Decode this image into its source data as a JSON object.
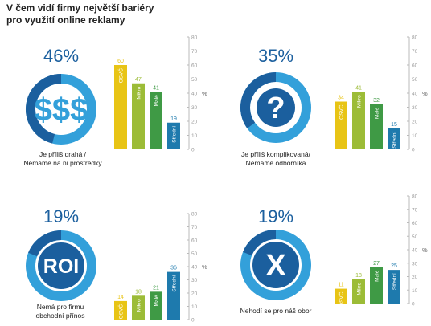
{
  "title_line1": "V čem vidí firmy největší bariéry",
  "title_line2": "pro využití online reklamy",
  "colors": {
    "ring_dark": "#1b5f9e",
    "ring_light": "#33a0da",
    "osvc": "#e8c415",
    "mikro": "#9cbc37",
    "male": "#3f9a45",
    "stredni": "#1e7aad",
    "pct_text": "#1b5f9e"
  },
  "chart_data": [
    {
      "type": "bar",
      "headline": "46%",
      "icon": "dollar-icon",
      "icon_text": "$$$",
      "caption": [
        "Je příliš drahá /",
        "Nemáme na ni prostředky"
      ],
      "categories": [
        "OSVČ",
        "Mikro",
        "Malé",
        "Střední"
      ],
      "values": [
        60,
        47,
        41,
        19
      ],
      "ylabel": "%",
      "ylim": [
        0,
        80
      ],
      "yticks": [
        0,
        10,
        20,
        30,
        40,
        50,
        60,
        70,
        80
      ]
    },
    {
      "type": "bar",
      "headline": "35%",
      "icon": "question-icon",
      "icon_text": "?",
      "caption": [
        "Je příliš komplikovaná/",
        "Nemáme odborníka"
      ],
      "categories": [
        "OSVČ",
        "Mikro",
        "Malé",
        "Střední"
      ],
      "values": [
        34,
        41,
        32,
        15
      ],
      "ylabel": "%",
      "ylim": [
        0,
        80
      ],
      "yticks": [
        0,
        10,
        20,
        30,
        40,
        50,
        60,
        70,
        80
      ]
    },
    {
      "type": "bar",
      "headline": "19%",
      "icon": "roi-icon",
      "icon_text": "ROI",
      "caption": [
        "Nemá pro firmu",
        "obchodní přínos"
      ],
      "categories": [
        "OSVČ",
        "Mikro",
        "Malé",
        "Střední"
      ],
      "values": [
        14,
        18,
        21,
        36
      ],
      "ylabel": "%",
      "ylim": [
        0,
        80
      ],
      "yticks": [
        0,
        10,
        20,
        30,
        40,
        50,
        60,
        70,
        80
      ]
    },
    {
      "type": "bar",
      "headline": "19%",
      "icon": "x-icon",
      "icon_text": "X",
      "caption": [
        "Nehodí se pro náš obor"
      ],
      "categories": [
        "OSVČ",
        "Mikro",
        "Malé",
        "Střední"
      ],
      "values": [
        11,
        18,
        27,
        25
      ],
      "ylabel": "%",
      "ylim": [
        0,
        80
      ],
      "yticks": [
        0,
        10,
        20,
        30,
        40,
        50,
        60,
        70,
        80
      ]
    }
  ]
}
